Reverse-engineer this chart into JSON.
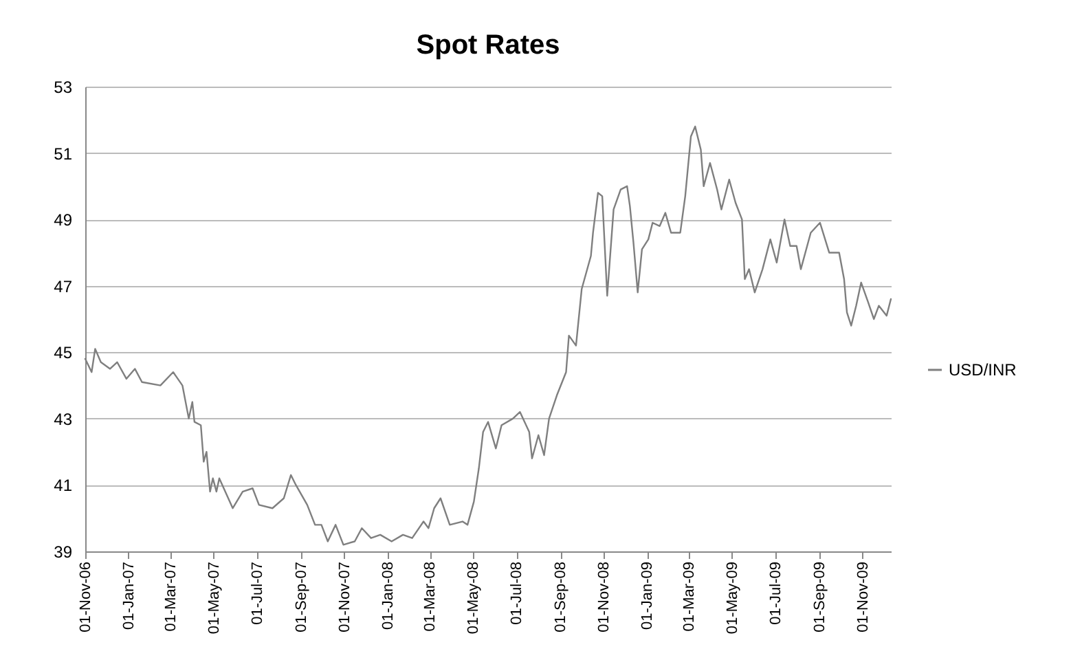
{
  "chart_data": {
    "type": "line",
    "title": "Spot Rates",
    "x": [
      "2006-11-01",
      "2006-11-10",
      "2006-11-15",
      "2006-11-23",
      "2006-12-06",
      "2006-12-16",
      "2006-12-29",
      "2007-01-10",
      "2007-01-20",
      "2007-02-15",
      "2007-03-05",
      "2007-03-18",
      "2007-03-27",
      "2007-04-01",
      "2007-04-04",
      "2007-04-13",
      "2007-04-17",
      "2007-04-21",
      "2007-04-26",
      "2007-04-30",
      "2007-05-05",
      "2007-05-09",
      "2007-05-28",
      "2007-06-11",
      "2007-06-25",
      "2007-07-04",
      "2007-07-23",
      "2007-08-08",
      "2007-08-18",
      "2007-08-25",
      "2007-09-10",
      "2007-09-21",
      "2007-09-30",
      "2007-10-09",
      "2007-10-20",
      "2007-10-31",
      "2007-11-16",
      "2007-11-26",
      "2007-12-09",
      "2007-12-22",
      "2008-01-07",
      "2008-01-23",
      "2008-02-05",
      "2008-02-21",
      "2008-02-28",
      "2008-03-07",
      "2008-03-16",
      "2008-03-29",
      "2008-04-16",
      "2008-04-23",
      "2008-05-02",
      "2008-05-09",
      "2008-05-15",
      "2008-05-22",
      "2008-06-02",
      "2008-06-10",
      "2008-06-26",
      "2008-07-06",
      "2008-07-19",
      "2008-07-23",
      "2008-08-01",
      "2008-08-09",
      "2008-08-16",
      "2008-08-27",
      "2008-09-09",
      "2008-09-13",
      "2008-09-23",
      "2008-10-01",
      "2008-10-14",
      "2008-10-17",
      "2008-10-24",
      "2008-10-30",
      "2008-11-06",
      "2008-11-15",
      "2008-11-25",
      "2008-12-04",
      "2008-12-08",
      "2008-12-13",
      "2008-12-19",
      "2008-12-25",
      "2009-01-03",
      "2009-01-09",
      "2009-01-19",
      "2009-01-27",
      "2009-02-04",
      "2009-02-17",
      "2009-02-24",
      "2009-03-04",
      "2009-03-10",
      "2009-03-18",
      "2009-03-22",
      "2009-03-31",
      "2009-04-10",
      "2009-04-16",
      "2009-04-27",
      "2009-05-06",
      "2009-05-15",
      "2009-05-19",
      "2009-05-25",
      "2009-06-02",
      "2009-06-13",
      "2009-06-24",
      "2009-07-03",
      "2009-07-14",
      "2009-07-22",
      "2009-07-31",
      "2009-08-06",
      "2009-08-20",
      "2009-09-02",
      "2009-09-15",
      "2009-09-29",
      "2009-10-06",
      "2009-10-10",
      "2009-10-16",
      "2009-10-23",
      "2009-10-30",
      "2009-11-09",
      "2009-11-17",
      "2009-11-24",
      "2009-12-05",
      "2009-12-11"
    ],
    "series": [
      {
        "name": "USD/INR",
        "color": "#7f7f7f",
        "values": [
          44.8,
          44.4,
          45.1,
          44.7,
          44.5,
          44.7,
          44.2,
          44.5,
          44.1,
          44.0,
          44.4,
          44.0,
          43.0,
          43.5,
          42.9,
          42.8,
          41.7,
          42.0,
          40.8,
          41.2,
          40.8,
          41.2,
          40.3,
          40.8,
          40.9,
          40.4,
          40.3,
          40.6,
          41.3,
          41.0,
          40.4,
          39.8,
          39.8,
          39.3,
          39.8,
          39.2,
          39.3,
          39.7,
          39.4,
          39.5,
          39.3,
          39.5,
          39.4,
          39.9,
          39.7,
          40.3,
          40.6,
          39.8,
          39.9,
          39.8,
          40.5,
          41.5,
          42.6,
          42.9,
          42.1,
          42.8,
          43.0,
          43.2,
          42.6,
          41.8,
          42.5,
          41.9,
          43.0,
          43.7,
          44.4,
          45.5,
          45.2,
          46.9,
          47.9,
          48.6,
          49.8,
          49.7,
          46.7,
          49.3,
          49.9,
          50.0,
          49.4,
          48.3,
          46.8,
          48.1,
          48.4,
          48.9,
          48.8,
          49.2,
          48.6,
          48.6,
          49.7,
          51.5,
          51.8,
          51.1,
          50.0,
          50.7,
          49.9,
          49.3,
          50.2,
          49.5,
          49.0,
          47.2,
          47.5,
          46.8,
          47.5,
          48.4,
          47.7,
          49.0,
          48.2,
          48.2,
          47.5,
          48.6,
          48.9,
          48.0,
          48.0,
          47.2,
          46.2,
          45.8,
          46.4,
          47.1,
          46.5,
          46.0,
          46.4,
          46.1,
          46.6
        ]
      }
    ],
    "xlim": [
      "2006-11-01",
      "2009-12-11"
    ],
    "xticks": [
      {
        "value": "2006-11-01",
        "label": "01-Nov-06"
      },
      {
        "value": "2007-01-01",
        "label": "01-Jan-07"
      },
      {
        "value": "2007-03-01",
        "label": "01-Mar-07"
      },
      {
        "value": "2007-05-01",
        "label": "01-May-07"
      },
      {
        "value": "2007-07-01",
        "label": "01-Jul-07"
      },
      {
        "value": "2007-09-01",
        "label": "01-Sep-07"
      },
      {
        "value": "2007-11-01",
        "label": "01-Nov-07"
      },
      {
        "value": "2008-01-01",
        "label": "01-Jan-08"
      },
      {
        "value": "2008-03-01",
        "label": "01-Mar-08"
      },
      {
        "value": "2008-05-01",
        "label": "01-May-08"
      },
      {
        "value": "2008-07-01",
        "label": "01-Jul-08"
      },
      {
        "value": "2008-09-01",
        "label": "01-Sep-08"
      },
      {
        "value": "2008-11-01",
        "label": "01-Nov-08"
      },
      {
        "value": "2009-01-01",
        "label": "01-Jan-09"
      },
      {
        "value": "2009-03-01",
        "label": "01-Mar-09"
      },
      {
        "value": "2009-05-01",
        "label": "01-May-09"
      },
      {
        "value": "2009-07-01",
        "label": "01-Jul-09"
      },
      {
        "value": "2009-09-01",
        "label": "01-Sep-09"
      },
      {
        "value": "2009-11-01",
        "label": "01-Nov-09"
      }
    ],
    "ylim": [
      39,
      53
    ],
    "yticks": [
      39,
      41,
      43,
      45,
      47,
      49,
      51,
      53
    ],
    "grid": "y",
    "legend": "right",
    "marker": "none",
    "line_style": "solid"
  }
}
